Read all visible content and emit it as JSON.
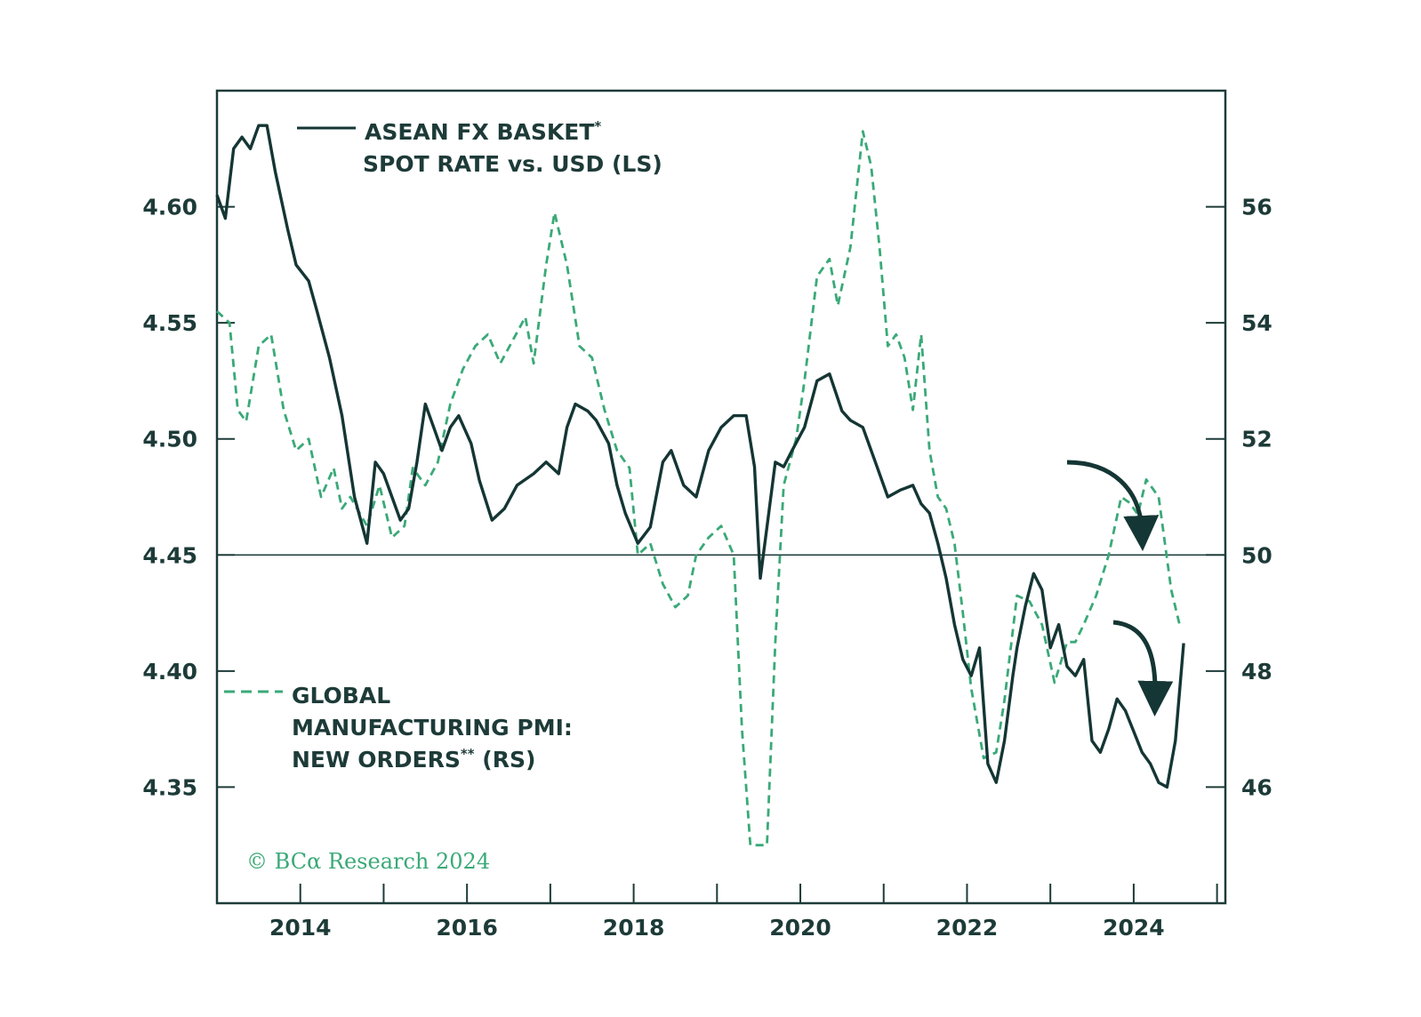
{
  "chart_data": {
    "type": "line",
    "title": "",
    "colors": {
      "fx": "#143634",
      "pmi": "#3aa978",
      "axis": "#1d3b38",
      "credit": "#3aa978"
    },
    "x_ticks": [
      "2014",
      "2016",
      "2018",
      "2020",
      "2022",
      "2024"
    ],
    "xlim": [
      2013,
      2025.1
    ],
    "left_axis": {
      "ticks": [
        "4.60",
        "4.55",
        "4.50",
        "4.45",
        "4.40",
        "4.35"
      ],
      "tick_values": [
        4.6,
        4.55,
        4.5,
        4.45,
        4.4,
        4.35
      ],
      "ylim": [
        4.3,
        4.65
      ]
    },
    "right_axis": {
      "ticks": [
        "56",
        "54",
        "52",
        "50",
        "48",
        "46"
      ],
      "tick_values": [
        56,
        54,
        52,
        50,
        48,
        46
      ],
      "ylim": [
        44.0,
        58.0
      ]
    },
    "reference_line": {
      "axis": "left",
      "value": 4.45
    },
    "legend": {
      "fx": {
        "line1": "ASEAN FX BASKET",
        "sup": "*",
        "line2": "SPOT RATE vs. USD (LS)"
      },
      "pmi": {
        "line1": "GLOBAL",
        "line2": "MANUFACTURING PMI:",
        "line3a": "NEW ORDERS",
        "sup": "**",
        "line3b": " (RS)"
      }
    },
    "credit": "© BCα Research 2024",
    "series": [
      {
        "name": "ASEAN FX BASKET SPOT RATE vs. USD (LS)",
        "axis": "left",
        "style": "solid",
        "x": [
          2013.0,
          2013.1,
          2013.2,
          2013.3,
          2013.4,
          2013.5,
          2013.6,
          2013.7,
          2013.85,
          2013.95,
          2014.1,
          2014.2,
          2014.35,
          2014.5,
          2014.65,
          2014.8,
          2014.9,
          2015.0,
          2015.1,
          2015.2,
          2015.3,
          2015.4,
          2015.5,
          2015.6,
          2015.7,
          2015.8,
          2015.9,
          2016.05,
          2016.15,
          2016.3,
          2016.45,
          2016.6,
          2016.8,
          2016.95,
          2017.1,
          2017.2,
          2017.3,
          2017.45,
          2017.55,
          2017.7,
          2017.8,
          2017.9,
          2018.05,
          2018.2,
          2018.35,
          2018.45,
          2018.6,
          2018.75,
          2018.9,
          2019.05,
          2019.2,
          2019.35,
          2019.45,
          2019.52,
          2019.6,
          2019.7,
          2019.8,
          2019.9,
          2020.05,
          2020.2,
          2020.35,
          2020.5,
          2020.6,
          2020.75,
          2020.9,
          2021.05,
          2021.2,
          2021.35,
          2021.45,
          2021.55,
          2021.65,
          2021.75,
          2021.85,
          2021.95,
          2022.05,
          2022.15,
          2022.25,
          2022.35,
          2022.45,
          2022.55,
          2022.6,
          2022.7,
          2022.8,
          2022.9,
          2023.0,
          2023.1,
          2023.2,
          2023.3,
          2023.4,
          2023.5,
          2023.6,
          2023.7,
          2023.8,
          2023.9,
          2024.0,
          2024.1,
          2024.2,
          2024.3,
          2024.4,
          2024.5,
          2024.6
        ],
        "values": [
          4.605,
          4.595,
          4.625,
          4.63,
          4.625,
          4.635,
          4.635,
          4.615,
          4.59,
          4.575,
          4.568,
          4.555,
          4.535,
          4.51,
          4.475,
          4.455,
          4.49,
          4.485,
          4.475,
          4.465,
          4.47,
          4.49,
          4.515,
          4.505,
          4.495,
          4.505,
          4.51,
          4.498,
          4.482,
          4.465,
          4.47,
          4.48,
          4.485,
          4.49,
          4.485,
          4.505,
          4.515,
          4.512,
          4.508,
          4.498,
          4.48,
          4.468,
          4.455,
          4.462,
          4.49,
          4.495,
          4.48,
          4.475,
          4.495,
          4.505,
          4.51,
          4.51,
          4.488,
          4.44,
          4.462,
          4.49,
          4.488,
          4.495,
          4.505,
          4.525,
          4.528,
          4.512,
          4.508,
          4.505,
          4.49,
          4.475,
          4.478,
          4.48,
          4.472,
          4.468,
          4.455,
          4.44,
          4.42,
          4.405,
          4.398,
          4.41,
          4.36,
          4.352,
          4.37,
          4.398,
          4.41,
          4.428,
          4.442,
          4.435,
          4.41,
          4.42,
          4.402,
          4.398,
          4.405,
          4.37,
          4.365,
          4.375,
          4.388,
          4.383,
          4.374,
          4.365,
          4.36,
          4.352,
          4.35,
          4.37,
          4.412
        ]
      },
      {
        "name": "GLOBAL MANUFACTURING PMI: NEW ORDERS (RS)",
        "axis": "right",
        "style": "dashed",
        "x": [
          2013.0,
          2013.15,
          2013.25,
          2013.35,
          2013.5,
          2013.65,
          2013.8,
          2013.95,
          2014.1,
          2014.25,
          2014.4,
          2014.5,
          2014.6,
          2014.8,
          2014.95,
          2015.1,
          2015.25,
          2015.35,
          2015.5,
          2015.65,
          2015.8,
          2015.95,
          2016.1,
          2016.25,
          2016.4,
          2016.55,
          2016.7,
          2016.8,
          2016.95,
          2017.05,
          2017.2,
          2017.35,
          2017.5,
          2017.65,
          2017.8,
          2017.95,
          2018.05,
          2018.2,
          2018.35,
          2018.5,
          2018.65,
          2018.75,
          2018.9,
          2019.05,
          2019.2,
          2019.3,
          2019.4,
          2019.5,
          2019.6,
          2019.7,
          2019.8,
          2019.95,
          2020.05,
          2020.2,
          2020.35,
          2020.45,
          2020.6,
          2020.75,
          2020.85,
          2020.95,
          2021.05,
          2021.15,
          2021.25,
          2021.35,
          2021.45,
          2021.55,
          2021.65,
          2021.75,
          2021.85,
          2021.95,
          2022.05,
          2022.2,
          2022.35,
          2022.45,
          2022.6,
          2022.75,
          2022.9,
          2023.05,
          2023.2,
          2023.3,
          2023.4,
          2023.55,
          2023.7,
          2023.85,
          2023.95,
          2024.05,
          2024.15,
          2024.3,
          2024.45,
          2024.55
        ],
        "values": [
          54.2,
          54.0,
          52.5,
          52.3,
          53.6,
          53.8,
          52.5,
          51.8,
          52.0,
          51.0,
          51.5,
          50.8,
          51.0,
          50.5,
          51.2,
          50.3,
          50.5,
          51.5,
          51.2,
          51.6,
          52.6,
          53.2,
          53.6,
          53.8,
          53.3,
          53.7,
          54.1,
          53.3,
          55.0,
          55.9,
          55.0,
          53.6,
          53.4,
          52.5,
          51.8,
          51.5,
          50.0,
          50.2,
          49.5,
          49.1,
          49.3,
          50.0,
          50.3,
          50.5,
          50.0,
          47.0,
          45.0,
          45.0,
          45.0,
          48.5,
          51.2,
          52.0,
          53.0,
          54.8,
          55.1,
          54.3,
          55.3,
          57.3,
          56.7,
          55.3,
          53.6,
          53.8,
          53.4,
          52.5,
          53.8,
          51.8,
          51.0,
          50.8,
          50.2,
          49.0,
          47.7,
          46.5,
          46.6,
          47.5,
          49.3,
          49.2,
          48.8,
          47.8,
          48.5,
          48.5,
          48.8,
          49.3,
          50.0,
          51.0,
          50.9,
          50.7,
          51.3,
          51.0,
          49.4,
          48.8
        ]
      }
    ]
  }
}
